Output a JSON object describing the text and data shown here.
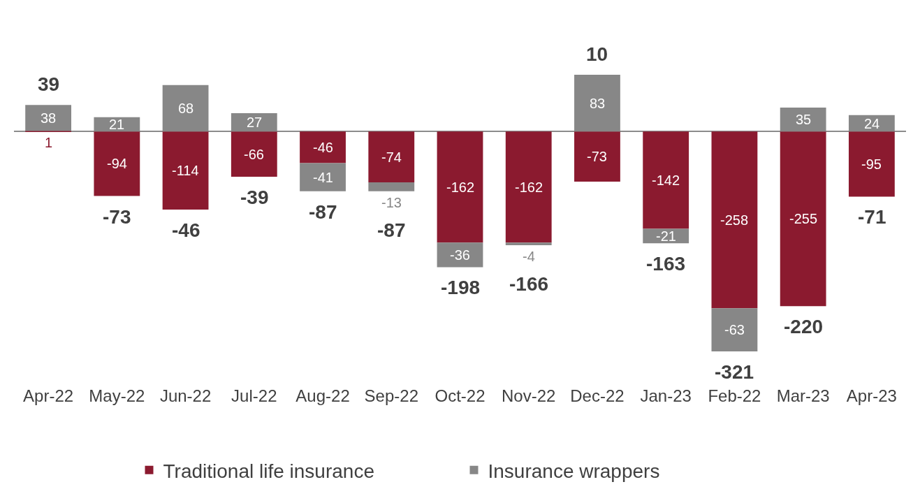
{
  "chart_data": {
    "type": "bar",
    "stacked": true,
    "data_labels": true,
    "legend": "bottom",
    "categories": [
      "Apr-22",
      "May-22",
      "Jun-22",
      "Jul-22",
      "Aug-22",
      "Sep-22",
      "Oct-22",
      "Nov-22",
      "Dec-22",
      "Jan-23",
      "Feb-22",
      "Mar-23",
      "Apr-23"
    ],
    "series": [
      {
        "name": "Traditional life insurance",
        "color": "#8b1a2f",
        "values": [
          1,
          -94,
          -114,
          -66,
          -46,
          -74,
          -162,
          -162,
          -73,
          -142,
          -258,
          -255,
          -95
        ]
      },
      {
        "name": "Insurance wrappers",
        "color": "#878787",
        "values": [
          38,
          21,
          68,
          27,
          -41,
          -13,
          -36,
          -4,
          83,
          -21,
          -63,
          35,
          24
        ]
      }
    ],
    "totals": [
      "39",
      "-73",
      "-46",
      "-39",
      "-87",
      "-87",
      "-198",
      "-166",
      "10",
      "-163",
      "-321",
      "-220",
      "-71"
    ]
  }
}
